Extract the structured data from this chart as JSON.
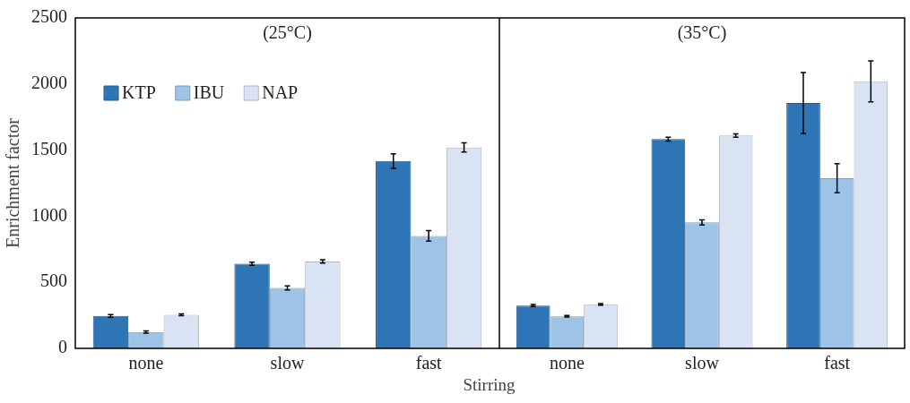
{
  "chart_data": [
    {
      "type": "bar",
      "title": "(25°C)",
      "xlabel": "Stirring",
      "ylabel": "Enrichment factor",
      "categories": [
        "none",
        "slow",
        "fast"
      ],
      "series": [
        {
          "name": "KTP",
          "color": "#2e75b6",
          "values": [
            245,
            640,
            1417
          ],
          "errors": [
            10,
            12,
            55
          ]
        },
        {
          "name": "IBU",
          "color": "#9dc3e6",
          "values": [
            124,
            457,
            851
          ],
          "errors": [
            8,
            15,
            40
          ]
        },
        {
          "name": "NAP",
          "color": "#dae3f3",
          "values": [
            254,
            658,
            1520
          ],
          "errors": [
            6,
            12,
            35
          ]
        }
      ],
      "ylim": [
        0,
        2500
      ],
      "yticks": [
        0,
        500,
        1000,
        1500,
        2000,
        2500
      ],
      "grid": false,
      "legend": "top left"
    },
    {
      "type": "bar",
      "title": "(35°C)",
      "categories": [
        "none",
        "slow",
        "fast"
      ],
      "series": [
        {
          "color": "#2e75b6",
          "values": [
            324,
            1583,
            1856
          ],
          "errors": [
            8,
            15,
            230
          ]
        },
        {
          "color": "#9dc3e6",
          "values": [
            243,
            953,
            1288
          ],
          "errors": [
            6,
            20,
            110
          ]
        },
        {
          "color": "#dae3f3",
          "values": [
            333,
            1610,
            2020
          ],
          "errors": [
            6,
            12,
            155
          ]
        }
      ],
      "ylim": [
        0,
        2500
      ],
      "yticks": [
        0,
        500,
        1000,
        1500,
        2000,
        2500
      ],
      "grid": false,
      "legend": false,
      "tick_labels": "x"
    }
  ]
}
